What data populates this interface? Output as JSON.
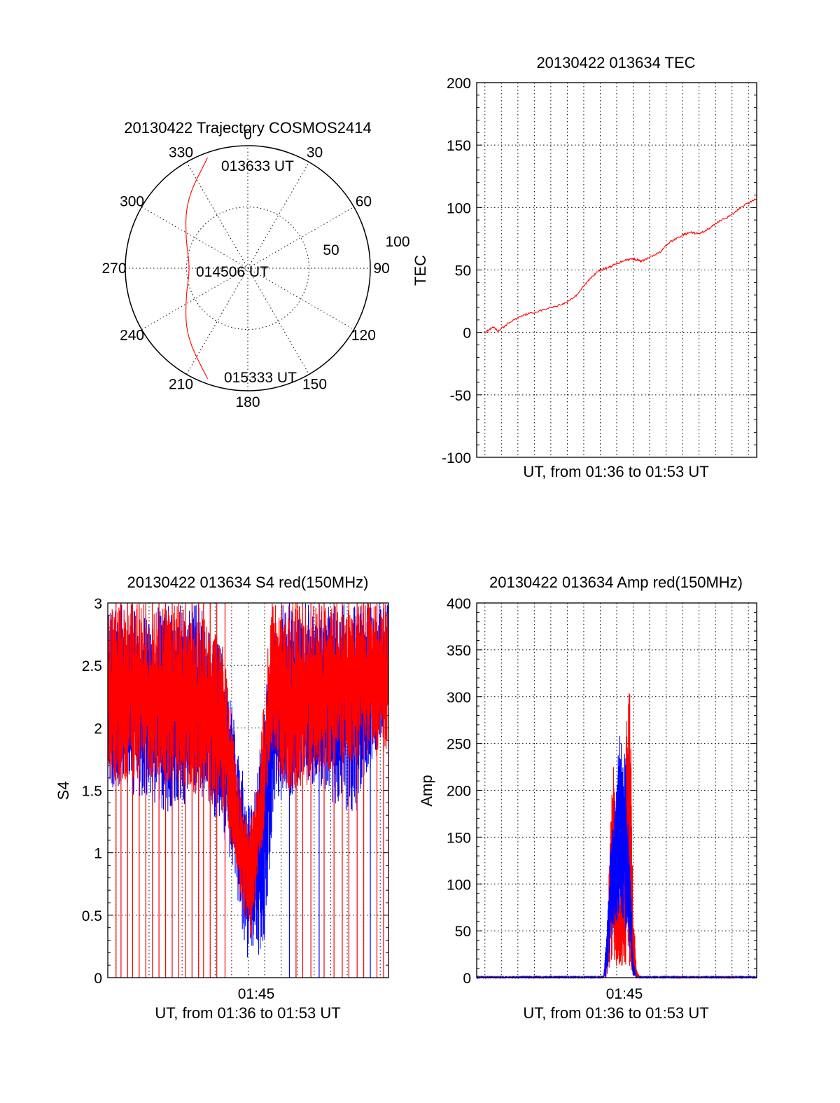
{
  "colors": {
    "red": "#ff0000",
    "blue": "#0000ff",
    "axis": "#000000"
  },
  "chart_data": [
    {
      "id": "trajectory",
      "type": "polar",
      "title": "20130422 Trajectory COSMOS2414",
      "angle_labels": [
        "0",
        "30",
        "60",
        "90",
        "120",
        "150",
        "180",
        "210",
        "240",
        "270",
        "300",
        "330"
      ],
      "radial_labels": [
        "50",
        "100"
      ],
      "rlim": [
        0,
        100
      ],
      "grid": true,
      "annotations": [
        "013633 UT",
        "014506 UT",
        "015333 UT"
      ],
      "track": {
        "color": "red",
        "points": [
          {
            "azimuth": 340,
            "zenith": 96
          },
          {
            "azimuth": 318,
            "zenith": 75
          },
          {
            "azimuth": 295,
            "zenith": 56
          },
          {
            "azimuth": 270,
            "zenith": 47
          },
          {
            "azimuth": 245,
            "zenith": 56
          },
          {
            "azimuth": 222,
            "zenith": 75
          },
          {
            "azimuth": 200,
            "zenith": 96
          }
        ]
      }
    },
    {
      "id": "tec",
      "type": "line",
      "title": "20130422 013634 TEC",
      "xlabel": "UT, from 01:36 to 01:53 UT",
      "ylabel": "TEC",
      "xlim_minutes": [
        96.5,
        113.5
      ],
      "ylim": [
        -100,
        200
      ],
      "yticks": [
        "200",
        "150",
        "100",
        "50",
        "0",
        "-50",
        "-100"
      ],
      "grid": true,
      "series": [
        {
          "color": "red",
          "points": [
            [
              97,
              0
            ],
            [
              97.5,
              4
            ],
            [
              97.8,
              1
            ],
            [
              98.5,
              8
            ],
            [
              99.3,
              14
            ],
            [
              100,
              16
            ],
            [
              101,
              20
            ],
            [
              101.8,
              23
            ],
            [
              102.5,
              29
            ],
            [
              103,
              37
            ],
            [
              103.5,
              45
            ],
            [
              104,
              50
            ],
            [
              104.5,
              52
            ],
            [
              105,
              55
            ],
            [
              105.5,
              58
            ],
            [
              106,
              59
            ],
            [
              106.5,
              57
            ],
            [
              107,
              60
            ],
            [
              107.6,
              64
            ],
            [
              108.2,
              72
            ],
            [
              109,
              78
            ],
            [
              109.5,
              80
            ],
            [
              110,
              79
            ],
            [
              110.6,
              83
            ],
            [
              111.2,
              89
            ],
            [
              112,
              94
            ],
            [
              112.6,
              101
            ],
            [
              113.5,
              107
            ]
          ]
        }
      ]
    },
    {
      "id": "s4",
      "type": "line",
      "title": "20130422 013634 S4 red(150MHz)",
      "xlabel": "UT, from 01:36 to 01:53 UT",
      "ylabel": "S4",
      "xticklabel": "01:45",
      "xlim_minutes": [
        96.5,
        113.5
      ],
      "ylim": [
        0,
        3
      ],
      "yticks": [
        "3",
        "2.5",
        "2",
        "1.5",
        "1",
        "0.5",
        "0"
      ],
      "grid": true,
      "series": [
        {
          "color": "blue",
          "envelope": [
            [
              96.5,
              1.3,
              2.9
            ],
            [
              97.5,
              1.5,
              3.0
            ],
            [
              99,
              1.4,
              3.0
            ],
            [
              100.5,
              1.3,
              3.0
            ],
            [
              102,
              1.5,
              3.0
            ],
            [
              103.5,
              1.1,
              2.6
            ],
            [
              104,
              0.9,
              2.2
            ],
            [
              104.5,
              0.5,
              1.8
            ],
            [
              105,
              0.1,
              1.4
            ],
            [
              105.5,
              0.15,
              1.6
            ],
            [
              106,
              0.2,
              2.2
            ],
            [
              106.5,
              1.3,
              2.8
            ],
            [
              107,
              1.4,
              3.0
            ],
            [
              108.5,
              1.5,
              3.0
            ],
            [
              110,
              1.4,
              3.0
            ],
            [
              111.5,
              1.3,
              3.0
            ],
            [
              113.5,
              2.1,
              3.0
            ]
          ],
          "spikes_to_zero": [
            107.5,
            109.3,
            112.4
          ]
        },
        {
          "color": "red",
          "envelope": [
            [
              96.5,
              1.5,
              3.0
            ],
            [
              99,
              1.6,
              3.0
            ],
            [
              101.5,
              1.5,
              3.0
            ],
            [
              103.5,
              1.3,
              2.7
            ],
            [
              104.2,
              0.9,
              1.8
            ],
            [
              104.7,
              0.5,
              1.4
            ],
            [
              105.2,
              0.3,
              1.3
            ],
            [
              105.6,
              0.7,
              1.6
            ],
            [
              106.4,
              1.8,
              3.0
            ],
            [
              107.5,
              1.4,
              3.0
            ],
            [
              109,
              1.6,
              3.0
            ],
            [
              111,
              1.7,
              3.0
            ],
            [
              113.5,
              1.8,
              3.0
            ]
          ],
          "spikes_to_zero": [
            97.0,
            97.3,
            97.7,
            98.0,
            98.4,
            98.8,
            99.2,
            99.6,
            100.0,
            100.4,
            100.8,
            101.2,
            101.6,
            102.0,
            102.3,
            102.7,
            103.1,
            103.6,
            107.9,
            108.3,
            108.8,
            109.6,
            110.2,
            110.7,
            111.1,
            111.6,
            112.0,
            112.8,
            113.2
          ]
        }
      ]
    },
    {
      "id": "amp",
      "type": "line",
      "title": "20130422 013634 Amp red(150MHz)",
      "xlabel": "UT, from 01:36 to 01:53 UT",
      "ylabel": "Amp",
      "xticklabel": "01:45",
      "xlim_minutes": [
        96.5,
        113.5
      ],
      "ylim": [
        0,
        400
      ],
      "yticks": [
        "400",
        "350",
        "300",
        "250",
        "200",
        "150",
        "100",
        "50",
        "0"
      ],
      "grid": true,
      "series": [
        {
          "color": "red",
          "envelope": [
            [
              96.5,
              0,
              1
            ],
            [
              104.2,
              0,
              1
            ],
            [
              104.4,
              0,
              30
            ],
            [
              104.6,
              10,
              160
            ],
            [
              104.8,
              20,
              230
            ],
            [
              105.0,
              10,
              140
            ],
            [
              105.2,
              5,
              90
            ],
            [
              105.4,
              10,
              120
            ],
            [
              105.6,
              5,
              310
            ],
            [
              105.8,
              5,
              320
            ],
            [
              106.0,
              0,
              80
            ],
            [
              106.2,
              0,
              10
            ],
            [
              106.4,
              0,
              1
            ],
            [
              113.5,
              0,
              1
            ]
          ]
        },
        {
          "color": "blue",
          "envelope": [
            [
              96.5,
              0,
              1
            ],
            [
              104.2,
              0,
              1
            ],
            [
              104.4,
              0,
              50
            ],
            [
              104.6,
              30,
              130
            ],
            [
              104.8,
              50,
              180
            ],
            [
              105.0,
              60,
              210
            ],
            [
              105.2,
              70,
              275
            ],
            [
              105.4,
              60,
              250
            ],
            [
              105.6,
              40,
              240
            ],
            [
              105.8,
              30,
              130
            ],
            [
              106.0,
              0,
              20
            ],
            [
              106.2,
              0,
              1
            ],
            [
              113.5,
              0,
              1
            ]
          ]
        }
      ]
    }
  ]
}
